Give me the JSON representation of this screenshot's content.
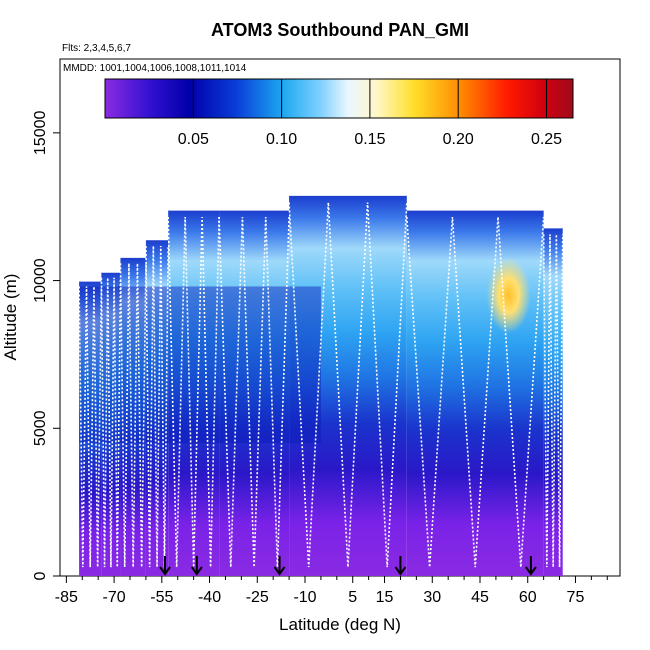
{
  "chart_data": {
    "type": "heatmap",
    "title": "ATOM3 Southbound PAN_GMI",
    "subtitle_flights": "Flts: 2,3,4,5,6,7",
    "subtitle_dates": "MMDD: 1001,1004,1006,1008,1011,1014",
    "xlabel": "Latitude (deg N)",
    "ylabel": "Altitude (m)",
    "xlim": [
      -87,
      89
    ],
    "ylim": [
      0,
      17500
    ],
    "x_ticks": [
      -85,
      -70,
      -55,
      -40,
      -25,
      -10,
      5,
      15,
      30,
      45,
      60,
      75
    ],
    "x_tick_labels": [
      "-85",
      "-70",
      "-55",
      "-40",
      "-25",
      "-10",
      "5",
      "15",
      "30",
      "45",
      "60",
      "75"
    ],
    "y_ticks": [
      0,
      5000,
      10000,
      15000
    ],
    "y_tick_labels": [
      "0",
      "5000",
      "10000",
      "15000"
    ],
    "colorbar": {
      "min": 0.0,
      "max": 0.265,
      "ticks": [
        0.05,
        0.1,
        0.15,
        0.2,
        0.25
      ],
      "tick_labels": [
        "0.05",
        "0.10",
        "0.15",
        "0.20",
        "0.25"
      ]
    },
    "flight_top_altitude": [
      {
        "lat_from": -81,
        "lat_to": -74,
        "alt": 10000
      },
      {
        "lat_from": -74,
        "lat_to": -68,
        "alt": 10300
      },
      {
        "lat_from": -68,
        "lat_to": -60,
        "alt": 10800
      },
      {
        "lat_from": -60,
        "lat_to": -53,
        "alt": 11400
      },
      {
        "lat_from": -53,
        "lat_to": -37,
        "alt": 12400
      },
      {
        "lat_from": -37,
        "lat_to": -15,
        "alt": 12400
      },
      {
        "lat_from": -15,
        "lat_to": 22,
        "alt": 12900
      },
      {
        "lat_from": 22,
        "lat_to": 65,
        "alt": 12400
      },
      {
        "lat_from": 65,
        "lat_to": 71,
        "alt": 11800
      }
    ],
    "concentration_profile_by_altitude": [
      {
        "alt": 500,
        "value": 0.02
      },
      {
        "alt": 1500,
        "value": 0.02
      },
      {
        "alt": 2500,
        "value": 0.025
      },
      {
        "alt": 3500,
        "value": 0.03
      },
      {
        "alt": 4500,
        "value": 0.045
      },
      {
        "alt": 5500,
        "value": 0.06
      },
      {
        "alt": 6500,
        "value": 0.075
      },
      {
        "alt": 7500,
        "value": 0.085
      },
      {
        "alt": 8500,
        "value": 0.095
      },
      {
        "alt": 9500,
        "value": 0.11
      },
      {
        "alt": 10500,
        "value": 0.12
      },
      {
        "alt": 11500,
        "value": 0.11
      },
      {
        "alt": 12500,
        "value": 0.06
      }
    ],
    "hotspot": {
      "lat": 54,
      "alt": 9500,
      "value": 0.2
    },
    "surface_markers_lat": [
      -54,
      -44,
      -18,
      20,
      61
    ]
  }
}
